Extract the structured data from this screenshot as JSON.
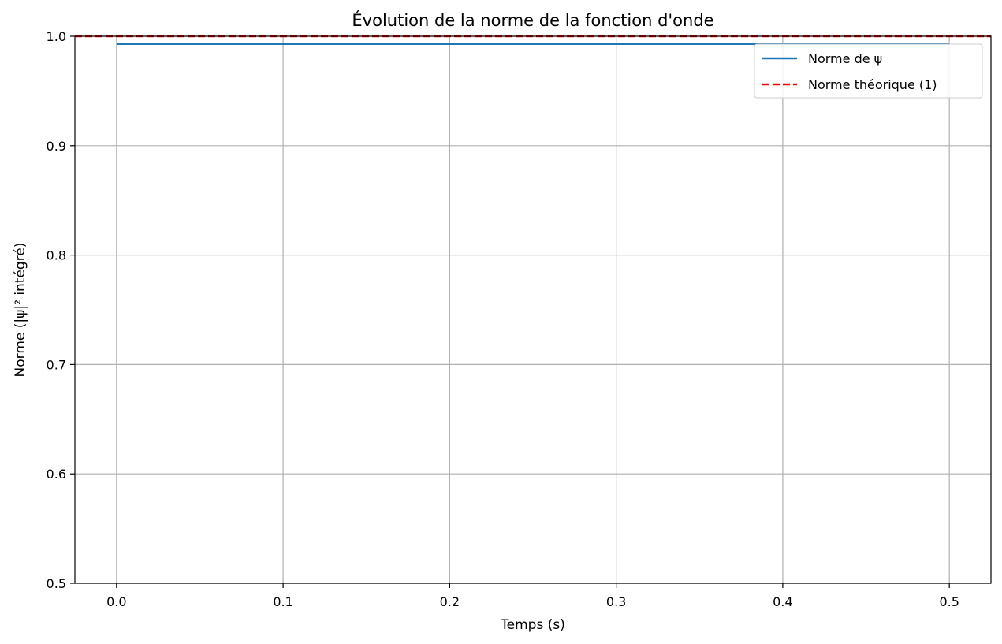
{
  "chart_data": {
    "type": "line",
    "title": "Évolution de la norme de la fonction d'onde",
    "xlabel": "Temps (s)",
    "ylabel": "Norme (|ψ|² intégré)",
    "xlim": [
      -0.025,
      0.525
    ],
    "ylim": [
      0.5,
      1.0
    ],
    "xticks": [
      0.0,
      0.1,
      0.2,
      0.3,
      0.4,
      0.5
    ],
    "xtick_labels": [
      "0.0",
      "0.1",
      "0.2",
      "0.3",
      "0.4",
      "0.5"
    ],
    "yticks": [
      0.5,
      0.6,
      0.7,
      0.8,
      0.9,
      1.0
    ],
    "ytick_labels": [
      "0.5",
      "0.6",
      "0.7",
      "0.8",
      "0.9",
      "1.0"
    ],
    "grid": true,
    "legend_position": "top-right",
    "series": [
      {
        "name": "Norme de ψ",
        "color": "#1f77b4",
        "style": "solid",
        "x": [
          0.0,
          0.5
        ],
        "y": [
          0.993,
          0.993
        ]
      },
      {
        "name": "Norme théorique (1)",
        "color": "#ff0000",
        "style": "dashed",
        "type": "hline",
        "y": 1.0
      }
    ]
  }
}
